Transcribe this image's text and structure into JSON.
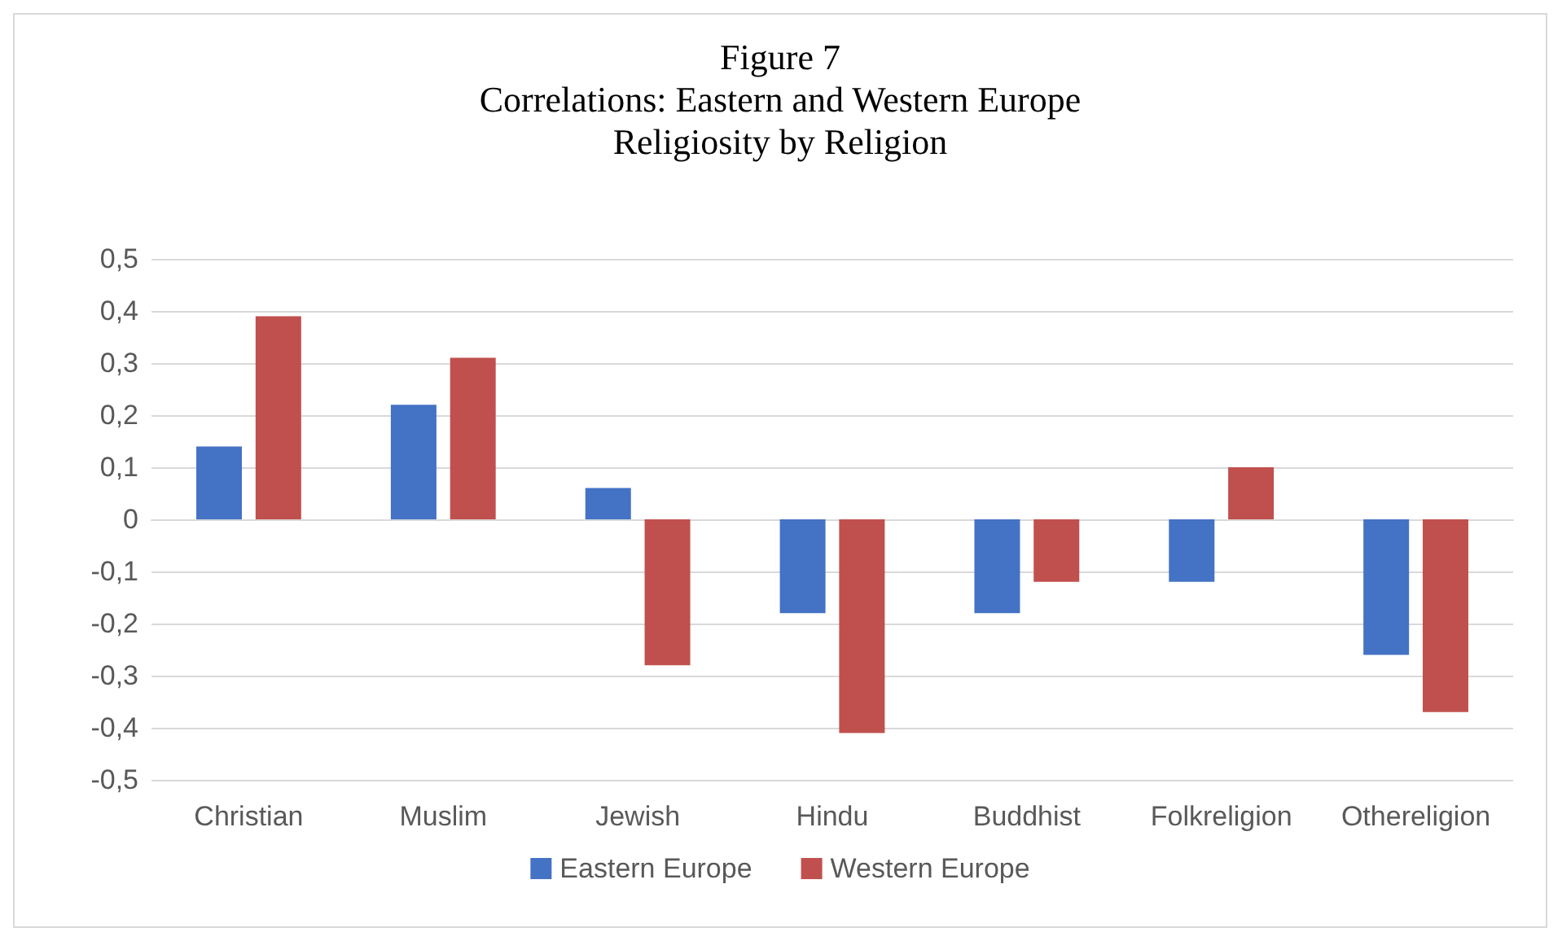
{
  "chart_data": {
    "type": "bar",
    "title": "Figure 7\nCorrelations: Eastern and Western Europe\nReligiosity by Religion",
    "categories": [
      "Christian",
      "Muslim",
      "Jewish",
      "Hindu",
      "Buddhist",
      "Folkreligion",
      "Othereligion"
    ],
    "series": [
      {
        "name": "Eastern Europe",
        "color": "#4472c4",
        "values": [
          0.14,
          0.22,
          0.06,
          -0.18,
          -0.18,
          -0.12,
          -0.26
        ]
      },
      {
        "name": "Western Europe",
        "color": "#c0504d",
        "values": [
          0.39,
          0.31,
          -0.28,
          -0.41,
          -0.12,
          0.1,
          -0.37
        ]
      }
    ],
    "ylim": [
      -0.5,
      0.5
    ],
    "yticks": [
      {
        "value": -0.5,
        "label": "-0,5"
      },
      {
        "value": -0.4,
        "label": "-0,4"
      },
      {
        "value": -0.3,
        "label": "-0,3"
      },
      {
        "value": -0.2,
        "label": "-0,2"
      },
      {
        "value": -0.1,
        "label": "-0,1"
      },
      0,
      {
        "value": 0.1,
        "label": "0,1"
      },
      {
        "value": 0.2,
        "label": "0,2"
      },
      {
        "value": 0.3,
        "label": "0,3"
      },
      {
        "value": 0.4,
        "label": "0,4"
      },
      {
        "value": 0.5,
        "label": "0,5"
      }
    ],
    "grid": "y",
    "legend": "bottom"
  }
}
